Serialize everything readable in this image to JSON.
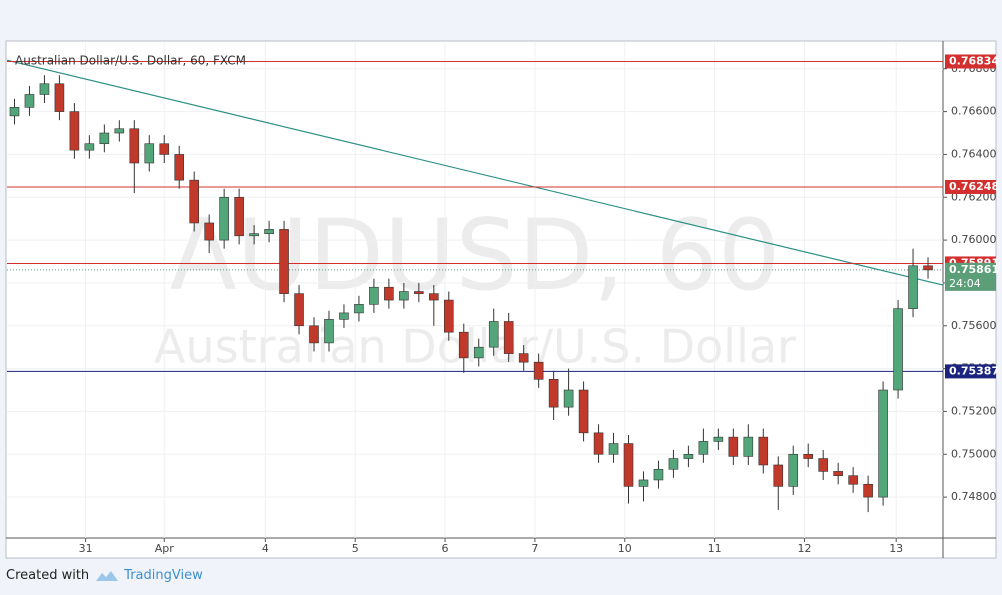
{
  "chart_data": {
    "type": "candlestick",
    "title": "Australian Dollar/U.S. Dollar, 60, FXCM",
    "watermark_symbol": "AUDUSD, 60",
    "watermark_name": "Australian Dollar/U.S. Dollar",
    "x": [
      2,
      6,
      10,
      14,
      18,
      22,
      26,
      30,
      34,
      38,
      42,
      46,
      50,
      54,
      58,
      62,
      66,
      70,
      74,
      78,
      82,
      86,
      90,
      94,
      98,
      102,
      106,
      110,
      114,
      118,
      122,
      126,
      130,
      134,
      138,
      142,
      146,
      150,
      154,
      158,
      162,
      166,
      170,
      174,
      178,
      182,
      186,
      190,
      194,
      198,
      202,
      206,
      210,
      214,
      218,
      222,
      226,
      230,
      234,
      238,
      242,
      246
    ],
    "open": [
      0.7658,
      0.7662,
      0.7668,
      0.7673,
      0.766,
      0.7642,
      0.7645,
      0.765,
      0.7652,
      0.7636,
      0.7645,
      0.764,
      0.7628,
      0.7608,
      0.76,
      0.762,
      0.7602,
      0.7603,
      0.7605,
      0.7575,
      0.756,
      0.7552,
      0.7563,
      0.7566,
      0.757,
      0.7578,
      0.7572,
      0.7576,
      0.7575,
      0.7572,
      0.7557,
      0.7545,
      0.755,
      0.7562,
      0.7547,
      0.7543,
      0.7535,
      0.7522,
      0.753,
      0.751,
      0.75,
      0.7505,
      0.7485,
      0.7488,
      0.7493,
      0.7498,
      0.75,
      0.7506,
      0.7508,
      0.7499,
      0.7508,
      0.7495,
      0.7485,
      0.75,
      0.7498,
      0.7492,
      0.749,
      0.7486,
      0.748,
      0.753,
      0.7568,
      0.7588
    ],
    "high": [
      0.7666,
      0.7672,
      0.7677,
      0.7677,
      0.7664,
      0.7649,
      0.7654,
      0.7656,
      0.7656,
      0.7649,
      0.7649,
      0.7644,
      0.7632,
      0.7612,
      0.7624,
      0.7624,
      0.7607,
      0.7609,
      0.7609,
      0.7579,
      0.7564,
      0.7567,
      0.757,
      0.7574,
      0.7582,
      0.7582,
      0.758,
      0.758,
      0.7579,
      0.7576,
      0.7561,
      0.7554,
      0.7568,
      0.7566,
      0.7551,
      0.7547,
      0.7539,
      0.754,
      0.7534,
      0.7514,
      0.751,
      0.7509,
      0.7492,
      0.7497,
      0.7502,
      0.7504,
      0.7512,
      0.7512,
      0.7512,
      0.7514,
      0.7512,
      0.7499,
      0.7504,
      0.7505,
      0.7502,
      0.7496,
      0.7494,
      0.749,
      0.7534,
      0.7572,
      0.7596,
      0.7592
    ],
    "low": [
      0.7654,
      0.7658,
      0.7664,
      0.7656,
      0.7638,
      0.7638,
      0.7641,
      0.7646,
      0.7622,
      0.7632,
      0.7636,
      0.7624,
      0.7604,
      0.7594,
      0.7596,
      0.7598,
      0.7598,
      0.7599,
      0.7571,
      0.7556,
      0.7548,
      0.7548,
      0.7559,
      0.7562,
      0.7566,
      0.7568,
      0.7568,
      0.7571,
      0.756,
      0.7553,
      0.7538,
      0.7541,
      0.7546,
      0.7543,
      0.7539,
      0.7531,
      0.7516,
      0.7518,
      0.7506,
      0.7496,
      0.7496,
      0.7477,
      0.7478,
      0.7484,
      0.7489,
      0.7494,
      0.7496,
      0.7502,
      0.7495,
      0.7495,
      0.7491,
      0.7474,
      0.7481,
      0.7494,
      0.7488,
      0.7486,
      0.7482,
      0.7473,
      0.7476,
      0.7526,
      0.7564,
      0.7582
    ],
    "close": [
      0.7662,
      0.7668,
      0.7673,
      0.766,
      0.7642,
      0.7645,
      0.765,
      0.7652,
      0.7636,
      0.7645,
      0.764,
      0.7628,
      0.7608,
      0.76,
      0.762,
      0.7602,
      0.7603,
      0.7605,
      0.7575,
      0.756,
      0.7552,
      0.7563,
      0.7566,
      0.757,
      0.7578,
      0.7572,
      0.7576,
      0.7575,
      0.7572,
      0.7557,
      0.7545,
      0.755,
      0.7562,
      0.7547,
      0.7543,
      0.7535,
      0.7522,
      0.753,
      0.751,
      0.75,
      0.7505,
      0.7485,
      0.7488,
      0.7493,
      0.7498,
      0.75,
      0.7506,
      0.7508,
      0.7499,
      0.7508,
      0.7495,
      0.7485,
      0.75,
      0.7498,
      0.7492,
      0.749,
      0.7486,
      0.748,
      0.753,
      0.7568,
      0.7588,
      0.75861
    ],
    "up_color": "#53a67a",
    "down_color": "#c0392b",
    "xlim": [
      0,
      250
    ],
    "xticks": [
      {
        "value": 21,
        "label": "31"
      },
      {
        "value": 42,
        "label": "Apr"
      },
      {
        "value": 69,
        "label": "4"
      },
      {
        "value": 93,
        "label": "5"
      },
      {
        "value": 117,
        "label": "6"
      },
      {
        "value": 141,
        "label": "7"
      },
      {
        "value": 165,
        "label": "10"
      },
      {
        "value": 189,
        "label": "11"
      },
      {
        "value": 213,
        "label": "12"
      },
      {
        "value": 237.5,
        "label": "13"
      }
    ],
    "ylim": [
      0.74609,
      0.76925
    ],
    "yticks": [
      {
        "value": 0.748,
        "label": "0.74800"
      },
      {
        "value": 0.75,
        "label": "0.75000"
      },
      {
        "value": 0.752,
        "label": "0.75200"
      },
      {
        "value": 0.754,
        "label": "0.75400"
      },
      {
        "value": 0.756,
        "label": "0.75600"
      },
      {
        "value": 0.758,
        "label": "0.75800"
      },
      {
        "value": 0.76,
        "label": "0.76000"
      },
      {
        "value": 0.762,
        "label": "0.76200"
      },
      {
        "value": 0.764,
        "label": "0.76400"
      },
      {
        "value": 0.766,
        "label": "0.76600"
      },
      {
        "value": 0.768,
        "label": "0.76800"
      }
    ],
    "grid": true,
    "levels": [
      {
        "value": 0.76834,
        "color": "#d32f2f"
      },
      {
        "value": 0.76248,
        "color": "#d32f2f"
      },
      {
        "value": 0.75891,
        "color": "#d32f2f"
      },
      {
        "value": 0.75387,
        "color": "#1a237e"
      }
    ],
    "current": {
      "value": 0.75861,
      "countdown": "24:04",
      "color": "#5b9e78"
    },
    "trendline": {
      "x": [
        0,
        250
      ],
      "y": [
        0.7684,
        0.7579
      ],
      "color": "#2b8f86"
    }
  },
  "footer": {
    "text": "Created with",
    "brand": "TradingView"
  }
}
